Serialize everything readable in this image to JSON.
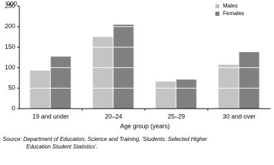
{
  "chart_data": {
    "type": "bar",
    "y_axis_label": "'000",
    "x_axis_label": "Age group (years)",
    "categories": [
      "19 and under",
      "20–24",
      "25–29",
      "30 and over"
    ],
    "series": [
      {
        "name": "Males",
        "color": "#c4c4c4",
        "values": [
          93,
          175,
          66,
          107
        ]
      },
      {
        "name": "Females",
        "color": "#808080",
        "values": [
          127,
          205,
          71,
          138
        ]
      }
    ],
    "ylim": [
      0,
      250
    ],
    "yticks": [
      0,
      50,
      100,
      150,
      200,
      250
    ],
    "grid": true,
    "legend": "top-right",
    "source": [
      "Source: Department of Education, Science and Training, 'Students: Selected Higher",
      "Education Student Statistics'."
    ]
  }
}
